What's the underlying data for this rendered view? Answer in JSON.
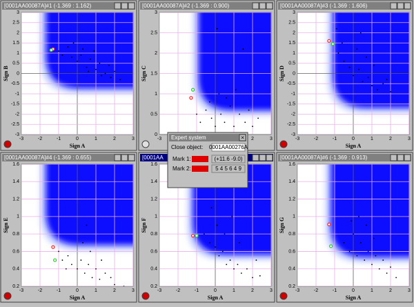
{
  "windows": [
    {
      "title": "[0001AA00087A]#1 (-1.369 : 1.162)",
      "x_label": "Sign A",
      "y_label": "Sign B",
      "xlim": [
        -3,
        3
      ],
      "ylim": [
        -3,
        3
      ],
      "xticks": [
        -3,
        -2,
        -1,
        0,
        1,
        2,
        3
      ],
      "yticks": [
        3,
        2.5,
        2,
        1.5,
        1,
        0.5,
        0,
        -0.5,
        -1,
        -1.5,
        -2,
        -2.5,
        -3
      ],
      "points": {
        "x": [
          -1,
          -0.5,
          -0.3,
          0,
          0.2,
          0.5,
          0.7,
          1,
          1.2,
          1.5,
          1.8,
          2,
          -0.8,
          0.3,
          0.9,
          1.3,
          2.3,
          -0.2,
          0.6,
          1.7
        ],
        "y": [
          1.1,
          1.3,
          0.8,
          0.6,
          0.9,
          0.3,
          0.7,
          0.2,
          0.5,
          0,
          -0.2,
          0.1,
          0.9,
          1.2,
          1.1,
          -0.1,
          -0.3,
          1.5,
          0.1,
          0.4
        ]
      },
      "mark1": {
        "x": -1.3,
        "y": 1.2
      },
      "mark2": {
        "x": -1.4,
        "y": 1.15
      }
    },
    {
      "title": "[0001AA00087A]#2 (-1.369 : 0.900)",
      "x_label": "Sign A",
      "y_label": "Sign C",
      "xlim": [
        -3,
        3
      ],
      "ylim": [
        0,
        3
      ],
      "xticks": [
        -3,
        -2,
        -1,
        0,
        1,
        2,
        3
      ],
      "yticks": [
        3,
        2.5,
        2,
        1.5,
        1,
        0.5,
        0
      ],
      "points": {
        "x": [
          -1,
          -0.8,
          -0.5,
          -0.2,
          0,
          0.3,
          0.5,
          0.8,
          1,
          1.3,
          1.6,
          2,
          2.3,
          0.2,
          0.6,
          -0.3,
          1.1,
          1.8,
          0.1,
          1.5
        ],
        "y": [
          0.5,
          0.3,
          0.6,
          0.4,
          0.2,
          0.5,
          0.3,
          0.7,
          0.2,
          0.5,
          0.3,
          0.2,
          0.4,
          1,
          0.9,
          0.8,
          1.1,
          0.6,
          2.6,
          2.1
        ]
      },
      "mark1": {
        "x": -1.3,
        "y": 0.9
      },
      "mark2": {
        "x": -1.2,
        "y": 1.1
      }
    },
    {
      "title": "[0001AA00087A]#3 (-1.369 : 1.606)",
      "x_label": "Sign A",
      "y_label": "Sign D",
      "xlim": [
        -3,
        3
      ],
      "ylim": [
        -3,
        3
      ],
      "xticks": [
        -3,
        -2,
        -1,
        0,
        1,
        2,
        3
      ],
      "yticks": [
        3,
        2.5,
        2,
        1.5,
        1,
        0.5,
        0,
        -0.5,
        -1,
        -1.5,
        -2,
        -2.5,
        -3
      ],
      "points": {
        "x": [
          -0.8,
          -0.5,
          -0.2,
          0,
          0.3,
          0.5,
          0.8,
          1,
          1.3,
          1.6,
          2,
          -0.6,
          0.2,
          0.7,
          1.1,
          -0.9,
          0.4,
          1.8
        ],
        "y": [
          1,
          0.6,
          0.3,
          -0.1,
          0.2,
          -0.4,
          -0.2,
          -0.6,
          -0.8,
          -0.5,
          -0.9,
          1.5,
          1.2,
          0.8,
          0.4,
          2.2,
          2,
          -0.3
        ]
      },
      "mark1": {
        "x": -1.3,
        "y": 1.6
      },
      "mark2": {
        "x": -1.1,
        "y": 1.45
      }
    },
    {
      "title": "[0001AA00087A]#4 (-1.369 : 0.655)",
      "x_label": "Sign A",
      "y_label": "Sign E",
      "xlim": [
        -3,
        3
      ],
      "ylim": [
        0.2,
        1.6
      ],
      "xticks": [
        -3,
        -2,
        -1,
        0,
        1,
        2,
        3
      ],
      "yticks": [
        1.6,
        1.4,
        1.2,
        1,
        0.8,
        0.6,
        0.4,
        0.2
      ],
      "points": {
        "x": [
          -1,
          -0.8,
          -0.5,
          -0.3,
          0,
          0.2,
          0.4,
          0.6,
          0.8,
          1,
          1.2,
          1.5,
          2,
          2.5,
          0.3,
          0.7,
          -0.6,
          1.3,
          0.5,
          1.8
        ],
        "y": [
          0.6,
          0.5,
          0.55,
          0.45,
          0.4,
          0.5,
          0.35,
          0.45,
          0.3,
          0.4,
          0.28,
          0.35,
          0.22,
          0.2,
          0.7,
          0.6,
          0.4,
          0.5,
          0.9,
          0.3
        ]
      },
      "mark1": {
        "x": -1.3,
        "y": 0.65
      },
      "mark2": {
        "x": -1.2,
        "y": 0.5
      }
    },
    {
      "title": "[0001AA",
      "x_label": "Sign A",
      "y_label": "Sign F",
      "xlim": [
        -3,
        3
      ],
      "ylim": [
        0.2,
        1.6
      ],
      "xticks": [
        -3,
        -2,
        -1,
        0,
        1,
        2,
        3
      ],
      "yticks": [
        1.6,
        1.4,
        1.2,
        1,
        0.8,
        0.6,
        0.4,
        0.2
      ],
      "points": {
        "x": [
          -0.6,
          -0.3,
          0,
          0.2,
          0.4,
          0.6,
          0.8,
          1,
          1.2,
          1.4,
          1.7,
          2,
          2.4,
          0.1,
          0.5,
          0.9,
          -0.2,
          1.3,
          2.2
        ],
        "y": [
          0.8,
          0.7,
          0.65,
          0.55,
          0.6,
          0.45,
          0.5,
          0.4,
          0.45,
          0.35,
          0.4,
          0.3,
          0.32,
          0.9,
          0.8,
          1,
          1.1,
          0.7,
          0.5
        ]
      },
      "mark1": {
        "x": -1.2,
        "y": 0.78
      },
      "mark2": {
        "x": -1,
        "y": 0.78
      }
    },
    {
      "title": "[0001AA00087A]#6 (-1.369 : 0.913)",
      "x_label": "Sign A",
      "y_label": "Sign G",
      "xlim": [
        -3,
        3
      ],
      "ylim": [
        0.2,
        1.6
      ],
      "xticks": [
        -3,
        -2,
        -1,
        0,
        1,
        2,
        3
      ],
      "yticks": [
        1.6,
        1.4,
        1.2,
        1,
        0.8,
        0.6,
        0.4,
        0.2
      ],
      "points": {
        "x": [
          -0.5,
          -0.2,
          0,
          0.2,
          0.4,
          0.6,
          0.8,
          1,
          1.2,
          1.4,
          1.6,
          1.8,
          2,
          2.3,
          0.3,
          0.7,
          1.1,
          -0.1
        ],
        "y": [
          0.7,
          0.6,
          0.8,
          0.55,
          0.7,
          0.5,
          0.6,
          0.45,
          0.55,
          0.4,
          0.5,
          0.35,
          0.42,
          0.3,
          1,
          0.9,
          0.75,
          0.95
        ]
      },
      "mark1": {
        "x": -1.3,
        "y": 0.91
      },
      "mark2": {
        "x": -1.2,
        "y": 0.66
      }
    }
  ],
  "dialog": {
    "title": "Expert system",
    "close_label": "Close object:",
    "close_value": "0001AA00276A",
    "mark1_label": "Mark 1:",
    "mark1_value": "(+11.6 -9.0)",
    "mark2_label": "Mark 2:",
    "mark2_value": "5 4 5 6 4 9"
  }
}
